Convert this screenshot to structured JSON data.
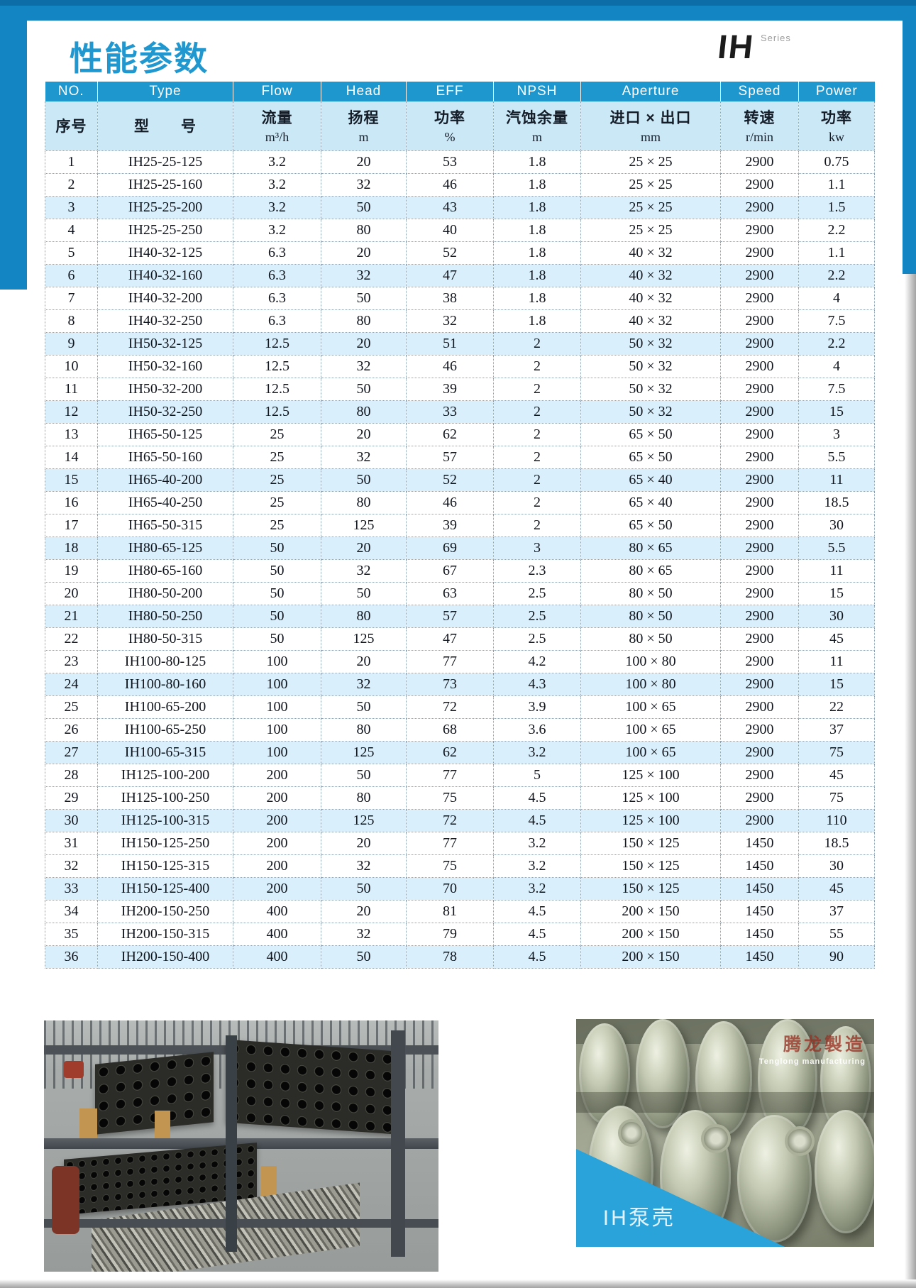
{
  "page": {
    "title": "性能参数",
    "brand": {
      "logo": "IH",
      "series": "Series"
    }
  },
  "colors": {
    "accent_blue": "#1285c2",
    "table_header_blue": "#1e96ce",
    "light_blue_row": "#d9effb",
    "header_cn_blue": "#cbe8f7",
    "title_blue": "#2197cf",
    "caption_triangle_blue": "#2aa2da"
  },
  "table": {
    "header_en": [
      "NO.",
      "Type",
      "Flow",
      "Head",
      "EFF",
      "NPSH",
      "Aperture",
      "Speed",
      "Power"
    ],
    "header_cn": [
      {
        "label": "序号",
        "unit": ""
      },
      {
        "label": "型　　号",
        "unit": ""
      },
      {
        "label": "流量",
        "unit": "m³/h"
      },
      {
        "label": "扬程",
        "unit": "m"
      },
      {
        "label": "功率",
        "unit": "%"
      },
      {
        "label": "汽蚀余量",
        "unit": "m"
      },
      {
        "label": "进口 × 出口",
        "unit": "mm"
      },
      {
        "label": "转速",
        "unit": "r/min"
      },
      {
        "label": "功率",
        "unit": "kw"
      }
    ],
    "rows": [
      [
        "1",
        "IH25-25-125",
        "3.2",
        "20",
        "53",
        "1.8",
        "25 × 25",
        "2900",
        "0.75"
      ],
      [
        "2",
        "IH25-25-160",
        "3.2",
        "32",
        "46",
        "1.8",
        "25 × 25",
        "2900",
        "1.1"
      ],
      [
        "3",
        "IH25-25-200",
        "3.2",
        "50",
        "43",
        "1.8",
        "25 × 25",
        "2900",
        "1.5"
      ],
      [
        "4",
        "IH25-25-250",
        "3.2",
        "80",
        "40",
        "1.8",
        "25 × 25",
        "2900",
        "2.2"
      ],
      [
        "5",
        "IH40-32-125",
        "6.3",
        "20",
        "52",
        "1.8",
        "40 × 32",
        "2900",
        "1.1"
      ],
      [
        "6",
        "IH40-32-160",
        "6.3",
        "32",
        "47",
        "1.8",
        "40 × 32",
        "2900",
        "2.2"
      ],
      [
        "7",
        "IH40-32-200",
        "6.3",
        "50",
        "38",
        "1.8",
        "40 × 32",
        "2900",
        "4"
      ],
      [
        "8",
        "IH40-32-250",
        "6.3",
        "80",
        "32",
        "1.8",
        "40 × 32",
        "2900",
        "7.5"
      ],
      [
        "9",
        "IH50-32-125",
        "12.5",
        "20",
        "51",
        "2",
        "50 × 32",
        "2900",
        "2.2"
      ],
      [
        "10",
        "IH50-32-160",
        "12.5",
        "32",
        "46",
        "2",
        "50 × 32",
        "2900",
        "4"
      ],
      [
        "11",
        "IH50-32-200",
        "12.5",
        "50",
        "39",
        "2",
        "50 × 32",
        "2900",
        "7.5"
      ],
      [
        "12",
        "IH50-32-250",
        "12.5",
        "80",
        "33",
        "2",
        "50 × 32",
        "2900",
        "15"
      ],
      [
        "13",
        "IH65-50-125",
        "25",
        "20",
        "62",
        "2",
        "65 × 50",
        "2900",
        "3"
      ],
      [
        "14",
        "IH65-50-160",
        "25",
        "32",
        "57",
        "2",
        "65 × 50",
        "2900",
        "5.5"
      ],
      [
        "15",
        "IH65-40-200",
        "25",
        "50",
        "52",
        "2",
        "65 × 40",
        "2900",
        "11"
      ],
      [
        "16",
        "IH65-40-250",
        "25",
        "80",
        "46",
        "2",
        "65 × 40",
        "2900",
        "18.5"
      ],
      [
        "17",
        "IH65-50-315",
        "25",
        "125",
        "39",
        "2",
        "65 × 50",
        "2900",
        "30"
      ],
      [
        "18",
        "IH80-65-125",
        "50",
        "20",
        "69",
        "3",
        "80 × 65",
        "2900",
        "5.5"
      ],
      [
        "19",
        "IH80-65-160",
        "50",
        "32",
        "67",
        "2.3",
        "80 × 65",
        "2900",
        "11"
      ],
      [
        "20",
        "IH80-50-200",
        "50",
        "50",
        "63",
        "2.5",
        "80 × 50",
        "2900",
        "15"
      ],
      [
        "21",
        "IH80-50-250",
        "50",
        "80",
        "57",
        "2.5",
        "80 × 50",
        "2900",
        "30"
      ],
      [
        "22",
        "IH80-50-315",
        "50",
        "125",
        "47",
        "2.5",
        "80 × 50",
        "2900",
        "45"
      ],
      [
        "23",
        "IH100-80-125",
        "100",
        "20",
        "77",
        "4.2",
        "100 × 80",
        "2900",
        "11"
      ],
      [
        "24",
        "IH100-80-160",
        "100",
        "32",
        "73",
        "4.3",
        "100 × 80",
        "2900",
        "15"
      ],
      [
        "25",
        "IH100-65-200",
        "100",
        "50",
        "72",
        "3.9",
        "100 × 65",
        "2900",
        "22"
      ],
      [
        "26",
        "IH100-65-250",
        "100",
        "80",
        "68",
        "3.6",
        "100 × 65",
        "2900",
        "37"
      ],
      [
        "27",
        "IH100-65-315",
        "100",
        "125",
        "62",
        "3.2",
        "100 × 65",
        "2900",
        "75"
      ],
      [
        "28",
        "IH125-100-200",
        "200",
        "50",
        "77",
        "5",
        "125 × 100",
        "2900",
        "45"
      ],
      [
        "29",
        "IH125-100-250",
        "200",
        "80",
        "75",
        "4.5",
        "125 × 100",
        "2900",
        "75"
      ],
      [
        "30",
        "IH125-100-315",
        "200",
        "125",
        "72",
        "4.5",
        "125 × 100",
        "2900",
        "110"
      ],
      [
        "31",
        "IH150-125-250",
        "200",
        "20",
        "77",
        "3.2",
        "150 × 125",
        "1450",
        "18.5"
      ],
      [
        "32",
        "IH150-125-315",
        "200",
        "32",
        "75",
        "3.2",
        "150 × 125",
        "1450",
        "30"
      ],
      [
        "33",
        "IH150-125-400",
        "200",
        "50",
        "70",
        "3.2",
        "150 × 125",
        "1450",
        "45"
      ],
      [
        "34",
        "IH200-150-250",
        "400",
        "20",
        "81",
        "4.5",
        "200 × 150",
        "1450",
        "37"
      ],
      [
        "35",
        "IH200-150-315",
        "400",
        "32",
        "79",
        "4.5",
        "200 × 150",
        "1450",
        "55"
      ],
      [
        "36",
        "IH200-150-400",
        "400",
        "50",
        "78",
        "4.5",
        "200 × 150",
        "1450",
        "90"
      ]
    ]
  },
  "photos": {
    "right_caption": "IH泵壳",
    "watermark_cn": "腾龙製造",
    "watermark_en": "Tenglong manufacturing"
  }
}
